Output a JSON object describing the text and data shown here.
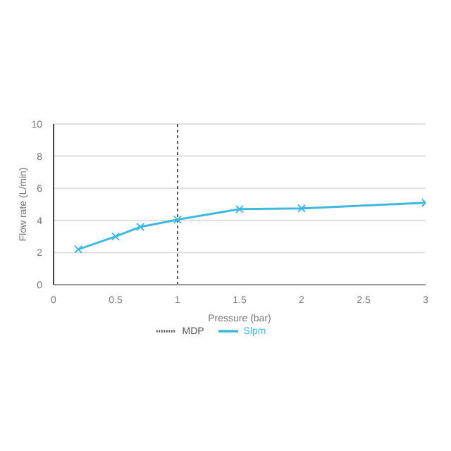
{
  "chart_data": {
    "type": "line",
    "xlabel": "Pressure (bar)",
    "ylabel": "Flow rate (L/min)",
    "xlim": [
      0,
      3
    ],
    "xticks": [
      0,
      0.5,
      1,
      1.5,
      2,
      2.5,
      3
    ],
    "ylim": [
      0,
      10
    ],
    "yticks": [
      0,
      2,
      4,
      6,
      8,
      10
    ],
    "grid": "y",
    "legend": "bottom",
    "series": [
      {
        "name": "Slpm",
        "color": "#3fb8e0",
        "x": [
          0.2,
          0.5,
          0.7,
          1,
          1.5,
          2,
          3
        ],
        "values": [
          2.2,
          3.0,
          3.6,
          4.05,
          4.7,
          4.75,
          5.1
        ],
        "marker": "cross",
        "line_style": "solid"
      },
      {
        "name": "MDP",
        "color": "#555555",
        "x": [
          1,
          1
        ],
        "values": [
          0,
          10
        ],
        "marker": "none",
        "line_style": "dotted"
      }
    ]
  }
}
